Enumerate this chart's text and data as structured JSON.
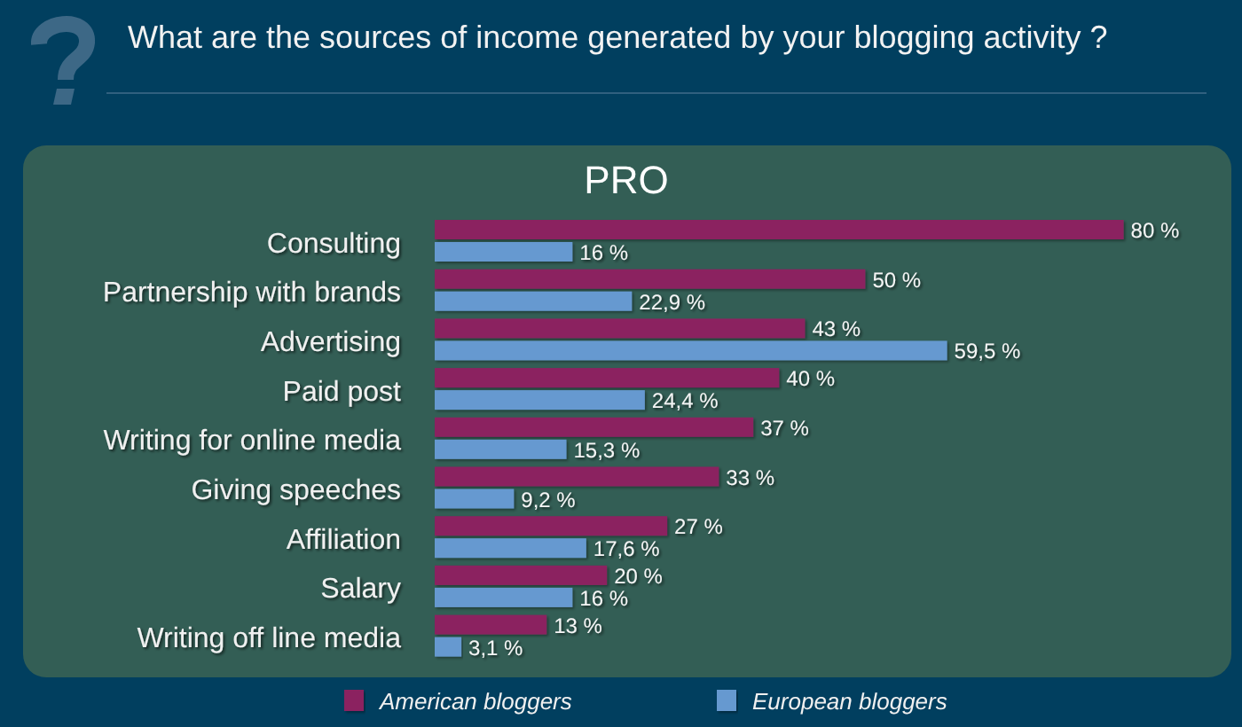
{
  "chart_data": {
    "type": "bar",
    "orientation": "horizontal",
    "title": "What are the sources of income generated by your blogging activity ?",
    "subtitle": "PRO",
    "categories": [
      "Consulting",
      "Partnership with brands",
      "Advertising",
      "Paid post",
      "Writing for online media",
      "Giving speeches",
      "Affiliation",
      "Salary",
      "Writing off line media"
    ],
    "series": [
      {
        "name": "American bloggers",
        "color": "#8b2460",
        "values": [
          80,
          50,
          43,
          40,
          37,
          33,
          27,
          20,
          13
        ],
        "value_labels": [
          "80 %",
          "50 %",
          "43 %",
          "40 %",
          "37 %",
          "33 %",
          "27 %",
          "20 %",
          "13 %"
        ]
      },
      {
        "name": "European bloggers",
        "color": "#6699d0",
        "values": [
          16,
          22.9,
          59.5,
          24.4,
          15.3,
          9.2,
          17.6,
          16,
          3.1
        ],
        "value_labels": [
          "16 %",
          "22,9 %",
          "59,5 %",
          "24,4 %",
          "15,3 %",
          "9,2 %",
          "17,6 %",
          "16 %",
          "3,1 %"
        ]
      }
    ],
    "legend": "bottom"
  }
}
